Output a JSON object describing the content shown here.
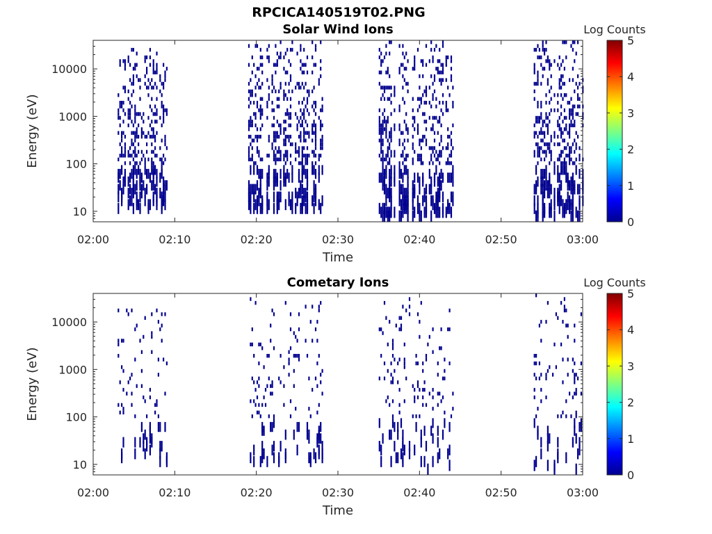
{
  "figure": {
    "title": "RPCICA140519T02.PNG"
  },
  "colors": {
    "data_mark": "#00008f",
    "axis": "#262626",
    "colormap": [
      "#00008f",
      "#0000ff",
      "#0080ff",
      "#00ffff",
      "#80ff80",
      "#ffff00",
      "#ff8000",
      "#ff0000",
      "#800000"
    ]
  },
  "chart_data": [
    {
      "type": "heatmap",
      "title": "Solar Wind Ions",
      "xlabel": "Time",
      "ylabel": "Energy (eV)",
      "x_ticks": [
        "02:00",
        "02:10",
        "02:20",
        "02:30",
        "02:40",
        "02:50",
        "03:00"
      ],
      "y_ticks": [
        "10",
        "100",
        "1000",
        "10000"
      ],
      "y_scale": "log",
      "ylim": [
        6,
        40000
      ],
      "colorbar": {
        "label": "Log Counts",
        "ticks": [
          "0",
          "1",
          "2",
          "3",
          "4",
          "5"
        ],
        "range": [
          0,
          5
        ]
      },
      "active_intervals": [
        {
          "start": "02:03",
          "end": "02:09",
          "min_energy_eV": 12,
          "max_energy_eV": 30000
        },
        {
          "start": "02:19",
          "end": "02:28",
          "min_energy_eV": 12,
          "max_energy_eV": 40000
        },
        {
          "start": "02:35",
          "end": "02:44",
          "min_energy_eV": 8,
          "max_energy_eV": 40000
        },
        {
          "start": "02:54",
          "end": "03:00",
          "min_energy_eV": 8,
          "max_energy_eV": 40000
        }
      ],
      "cell_log_counts": 0
    },
    {
      "type": "heatmap",
      "title": "Cometary Ions",
      "xlabel": "Time",
      "ylabel": "Energy (eV)",
      "x_ticks": [
        "02:00",
        "02:10",
        "02:20",
        "02:30",
        "02:40",
        "02:50",
        "03:00"
      ],
      "y_ticks": [
        "10",
        "100",
        "1000",
        "10000"
      ],
      "y_scale": "log",
      "ylim": [
        6,
        40000
      ],
      "colorbar": {
        "label": "Log Counts",
        "ticks": [
          "0",
          "1",
          "2",
          "3",
          "4",
          "5"
        ],
        "range": [
          0,
          5
        ]
      },
      "active_intervals": [
        {
          "start": "02:03",
          "end": "02:09",
          "min_energy_eV": 12,
          "max_energy_eV": 30000
        },
        {
          "start": "02:19",
          "end": "02:28",
          "min_energy_eV": 12,
          "max_energy_eV": 35000
        },
        {
          "start": "02:35",
          "end": "02:44",
          "min_energy_eV": 8,
          "max_energy_eV": 35000
        },
        {
          "start": "02:54",
          "end": "03:00",
          "min_energy_eV": 8,
          "max_energy_eV": 40000
        }
      ],
      "cell_log_counts": 0
    }
  ]
}
